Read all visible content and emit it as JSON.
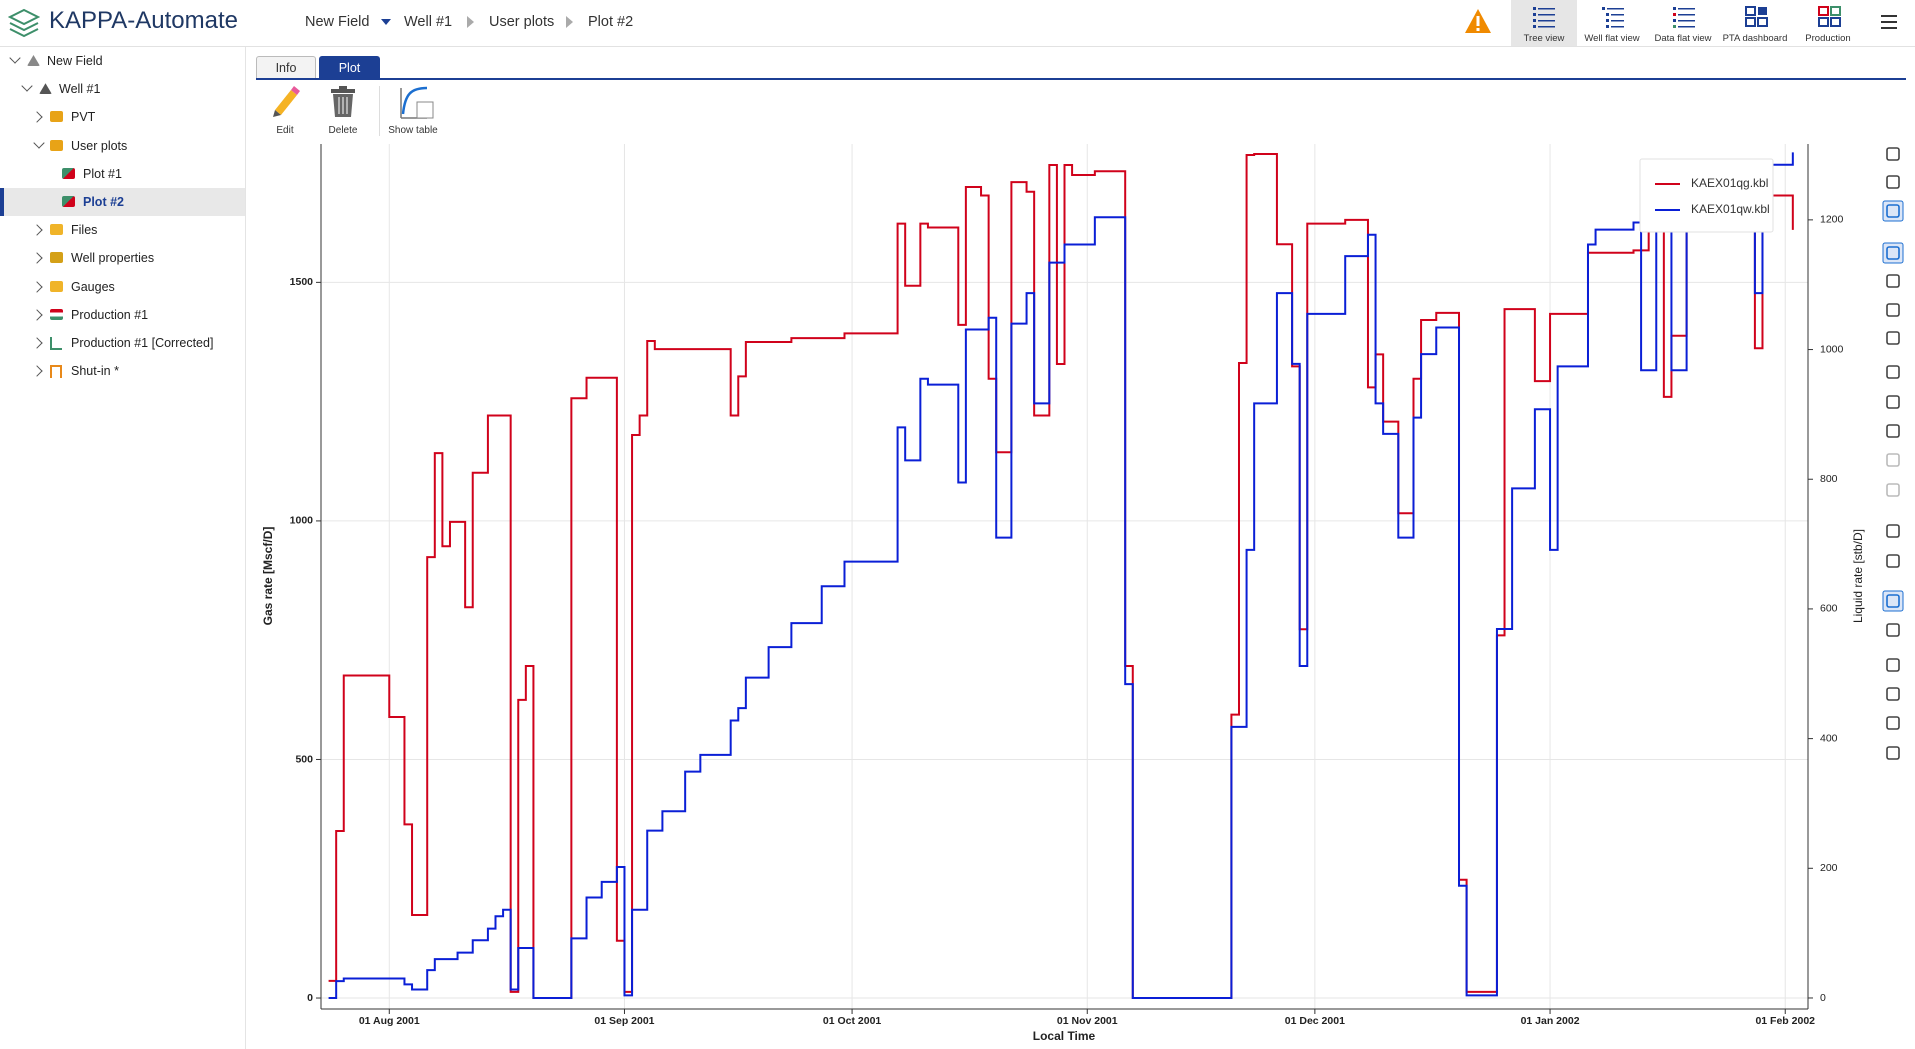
{
  "header": {
    "app_title": "KAPPA-Automate",
    "breadcrumb": [
      "New Field",
      "Well #1",
      "User plots",
      "Plot #2"
    ],
    "views": [
      "Tree view",
      "Well flat view",
      "Data flat view",
      "PTA dashboard",
      "Production"
    ]
  },
  "tree": [
    "New Field",
    "Well #1",
    "PVT",
    "User plots",
    "Plot #1",
    "Plot #2",
    "Files",
    "Well properties",
    "Gauges",
    "Production #1",
    "Production #1 [Corrected]",
    "Shut-in *"
  ],
  "tabs": [
    "Info",
    "Plot"
  ],
  "toolbar": [
    "Edit",
    "Delete",
    "Show table"
  ],
  "chart_data": {
    "type": "line",
    "drawstyle": "steps-post",
    "x_label": "Local Time",
    "y_label": "Gas rate [Mscf/D]",
    "y2_label": "Liquid rate [stb/D]",
    "xlim": [
      "2001-07-23",
      "2002-02-04"
    ],
    "xticks": [
      {
        "value": "2001-08-01",
        "label": "01 Aug 2001"
      },
      {
        "value": "2001-09-01",
        "label": "01 Sep 2001"
      },
      {
        "value": "2001-10-01",
        "label": "01 Oct 2001"
      },
      {
        "value": "2001-11-01",
        "label": "01 Nov 2001"
      },
      {
        "value": "2001-12-01",
        "label": "01 Dec 2001"
      },
      {
        "value": "2002-01-01",
        "label": "01 Jan 2002"
      },
      {
        "value": "2002-02-01",
        "label": "01 Feb 2002"
      }
    ],
    "ylim": [
      -23,
      1790
    ],
    "yticks": [
      0,
      500,
      1000,
      1500
    ],
    "y2lim": [
      -17,
      1317
    ],
    "y2ticks": [
      0,
      200,
      400,
      600,
      800,
      1000,
      1200
    ],
    "grid": true,
    "legend": "top-right",
    "series": [
      {
        "name": "KAEX01qg.kbl",
        "color": "#d0021b",
        "axis": "y",
        "x": [
          "2001-07-24",
          "2001-07-25",
          "2001-07-26",
          "2001-08-01",
          "2001-08-03",
          "2001-08-04",
          "2001-08-06",
          "2001-08-07",
          "2001-08-08",
          "2001-08-09",
          "2001-08-11",
          "2001-08-12",
          "2001-08-14",
          "2001-08-17",
          "2001-08-18",
          "2001-08-19",
          "2001-08-20",
          "2001-08-25",
          "2001-08-27",
          "2001-08-31",
          "2001-09-01",
          "2001-09-02",
          "2001-09-03",
          "2001-09-04",
          "2001-09-05",
          "2001-09-15",
          "2001-09-16",
          "2001-09-17",
          "2001-09-23",
          "2001-09-30",
          "2001-10-07",
          "2001-10-08",
          "2001-10-10",
          "2001-10-11",
          "2001-10-15",
          "2001-10-16",
          "2001-10-18",
          "2001-10-19",
          "2001-10-20",
          "2001-10-22",
          "2001-10-24",
          "2001-10-25",
          "2001-10-27",
          "2001-10-28",
          "2001-10-29",
          "2001-10-30",
          "2001-11-02",
          "2001-11-06",
          "2001-11-07",
          "2001-11-20",
          "2001-11-21",
          "2001-11-22",
          "2001-11-23",
          "2001-11-26",
          "2001-11-28",
          "2001-11-29",
          "2001-11-30",
          "2001-12-05",
          "2001-12-08",
          "2001-12-09",
          "2001-12-10",
          "2001-12-12",
          "2001-12-14",
          "2001-12-15",
          "2001-12-17",
          "2001-12-20",
          "2001-12-21",
          "2001-12-25",
          "2001-12-26",
          "2001-12-30",
          "2002-01-01",
          "2002-01-06",
          "2002-01-12",
          "2002-01-14",
          "2002-01-16",
          "2002-01-17",
          "2002-01-19",
          "2002-01-24",
          "2002-01-28",
          "2002-01-29",
          "2002-02-02"
        ],
        "values": [
          36,
          350,
          676,
          589,
          364,
          174,
          924,
          1142,
          947,
          998,
          819,
          1101,
          1221,
          13,
          625,
          696,
          0,
          1257,
          1300,
          120,
          13,
          1180,
          1221,
          1377,
          1360,
          1221,
          1303,
          1375,
          1383,
          1393,
          1623,
          1493,
          1623,
          1615,
          1411,
          1700,
          1682,
          1298,
          1144,
          1710,
          1690,
          1221,
          1746,
          1329,
          1746,
          1725,
          1733,
          696,
          0,
          594,
          1331,
          1767,
          1769,
          1580,
          1324,
          773,
          1623,
          1631,
          1280,
          1349,
          1208,
          1016,
          1298,
          1421,
          1436,
          248,
          13,
          760,
          1444,
          1293,
          1434,
          1562,
          1567,
          1708,
          1260,
          1388,
          1682,
          1613,
          1362,
          1682,
          1610
        ]
      },
      {
        "name": "KAEX01qw.kbl",
        "color": "#0a1fd6",
        "axis": "y2",
        "x": [
          "2001-07-24",
          "2001-07-25",
          "2001-07-26",
          "2001-08-03",
          "2001-08-04",
          "2001-08-06",
          "2001-08-07",
          "2001-08-10",
          "2001-08-12",
          "2001-08-14",
          "2001-08-15",
          "2001-08-16",
          "2001-08-17",
          "2001-08-18",
          "2001-08-20",
          "2001-08-25",
          "2001-08-27",
          "2001-08-29",
          "2001-08-31",
          "2001-09-01",
          "2001-09-02",
          "2001-09-04",
          "2001-09-06",
          "2001-09-09",
          "2001-09-11",
          "2001-09-15",
          "2001-09-16",
          "2001-09-17",
          "2001-09-20",
          "2001-09-23",
          "2001-09-27",
          "2001-09-30",
          "2001-10-07",
          "2001-10-08",
          "2001-10-10",
          "2001-10-11",
          "2001-10-15",
          "2001-10-16",
          "2001-10-19",
          "2001-10-20",
          "2001-10-22",
          "2001-10-24",
          "2001-10-25",
          "2001-10-27",
          "2001-10-29",
          "2001-11-02",
          "2001-11-06",
          "2001-11-07",
          "2001-11-20",
          "2001-11-22",
          "2001-11-23",
          "2001-11-26",
          "2001-11-28",
          "2001-11-29",
          "2001-11-30",
          "2001-12-05",
          "2001-12-08",
          "2001-12-09",
          "2001-12-10",
          "2001-12-12",
          "2001-12-14",
          "2001-12-15",
          "2001-12-17",
          "2001-12-20",
          "2001-12-21",
          "2001-12-25",
          "2001-12-27",
          "2001-12-30",
          "2002-01-01",
          "2002-01-02",
          "2002-01-06",
          "2002-01-07",
          "2002-01-12",
          "2002-01-13",
          "2002-01-15",
          "2002-01-17",
          "2002-01-19",
          "2002-01-28",
          "2002-01-29",
          "2002-02-02"
        ],
        "values": [
          0,
          26,
          30,
          21,
          13,
          43,
          60,
          70,
          89,
          107,
          126,
          136,
          13,
          77,
          0,
          92,
          155,
          179,
          202,
          4,
          136,
          258,
          288,
          349,
          375,
          428,
          447,
          494,
          541,
          578,
          635,
          673,
          880,
          829,
          955,
          946,
          795,
          1031,
          1049,
          710,
          1040,
          1087,
          917,
          1134,
          1162,
          1204,
          484,
          0,
          418,
          691,
          917,
          1087,
          978,
          512,
          1055,
          1144,
          1177,
          917,
          870,
          710,
          895,
          993,
          1034,
          173,
          4,
          569,
          786,
          908,
          691,
          974,
          1162,
          1185,
          1196,
          968,
          1191,
          968,
          1238,
          1087,
          1285,
          1304
        ]
      }
    ]
  }
}
